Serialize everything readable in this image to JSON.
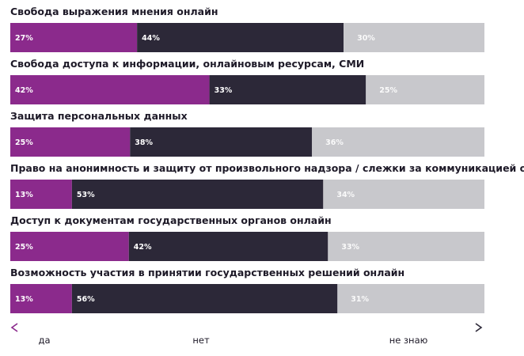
{
  "chart_data": {
    "type": "bar",
    "orientation": "horizontal",
    "stacked": true,
    "percent_scale": [
      0,
      100
    ],
    "categories": [
      "Свобода выражения мнения онлайн",
      "Свобода доступа к информации, онлайновым ресурсам, СМИ",
      "Защита персональных данных",
      "Право на анонимность и защиту от произвольного надзора / слежки за коммуникацией онлайн",
      "Доступ к документам государственных органов онлайн",
      "Возможность участия в принятии государственных решений онлайн"
    ],
    "series": [
      {
        "name": "да",
        "color": "#8b2a8c",
        "values": [
          27,
          42,
          25,
          13,
          25,
          13
        ],
        "value_labels": [
          "27%",
          "42%",
          "25%",
          "13%",
          "25%",
          "13%"
        ]
      },
      {
        "name": "нет",
        "color": "#2c2838",
        "values": [
          44,
          33,
          38,
          53,
          42,
          56
        ],
        "value_labels": [
          "44%",
          "33%",
          "38%",
          "53%",
          "42%",
          "56%"
        ]
      },
      {
        "name": "не знаю",
        "color": "#c8c8cc",
        "values": [
          30,
          25,
          36,
          34,
          33,
          31
        ],
        "value_labels": [
          "30%",
          "25%",
          "36%",
          "34%",
          "33%",
          "31%"
        ]
      }
    ],
    "axis_labels": [
      "да",
      "нет",
      "не знаю"
    ],
    "grid": false,
    "legend": "none"
  }
}
